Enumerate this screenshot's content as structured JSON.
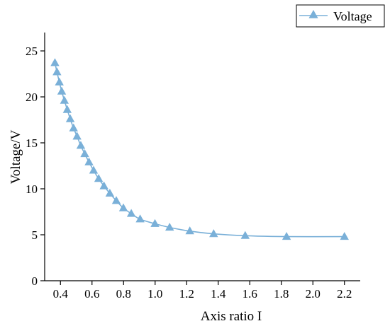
{
  "chart_data": {
    "type": "line",
    "title": "",
    "xlabel": "Axis ratio I",
    "ylabel": "Voltage/V",
    "xlim": [
      0.3,
      2.3
    ],
    "ylim": [
      0,
      27
    ],
    "x_ticks": [
      0.4,
      0.6,
      0.8,
      1.0,
      1.2,
      1.4,
      1.6,
      1.8,
      2.0,
      2.2
    ],
    "x_tick_labels": [
      "0.4",
      "0.6",
      "0.8",
      "1.0",
      "1.2",
      "1.4",
      "1.6",
      "1.8",
      "2.0",
      "2.2"
    ],
    "y_ticks": [
      0,
      5,
      10,
      15,
      20,
      25
    ],
    "y_tick_labels": [
      "0",
      "5",
      "10",
      "15",
      "20",
      "25"
    ],
    "grid": false,
    "legend": {
      "position": "top-right",
      "entries": [
        "Voltage"
      ]
    },
    "colors": {
      "series": "#7ab0d8",
      "axis": "#000000"
    },
    "series": [
      {
        "name": "Voltage",
        "marker": "triangle",
        "x": [
          0.365,
          0.378,
          0.393,
          0.408,
          0.425,
          0.443,
          0.462,
          0.483,
          0.505,
          0.529,
          0.554,
          0.581,
          0.61,
          0.642,
          0.676,
          0.713,
          0.754,
          0.799,
          0.849,
          0.905,
          0.999,
          1.092,
          1.22,
          1.371,
          1.571,
          1.833,
          2.2
        ],
        "y": [
          23.7,
          22.7,
          21.6,
          20.6,
          19.6,
          18.6,
          17.6,
          16.6,
          15.7,
          14.7,
          13.8,
          12.9,
          12.0,
          11.1,
          10.3,
          9.5,
          8.7,
          7.9,
          7.3,
          6.7,
          6.2,
          5.8,
          5.4,
          5.1,
          4.9,
          4.8,
          4.8
        ]
      }
    ]
  }
}
